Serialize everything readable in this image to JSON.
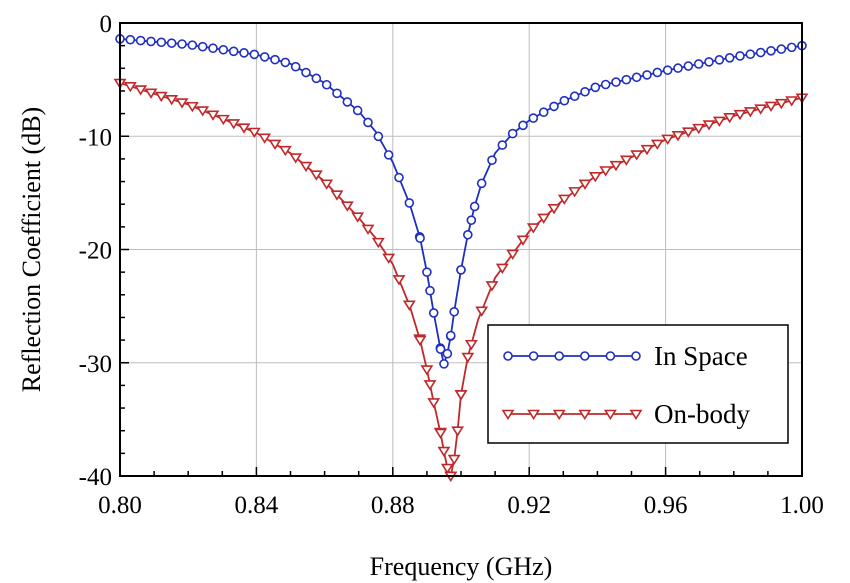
{
  "chart_data": {
    "type": "line",
    "xlabel": "Frequency (GHz)",
    "ylabel": "Reflection Coefficient (dB)",
    "xlim": [
      0.8,
      1.0
    ],
    "ylim": [
      -40,
      0
    ],
    "xticks": [
      0.8,
      0.84,
      0.88,
      0.92,
      0.96,
      1.0
    ],
    "xtick_labels": [
      "0.80",
      "0.84",
      "0.88",
      "0.92",
      "0.96",
      "1.00"
    ],
    "yticks": [
      0,
      -10,
      -20,
      -30,
      -40
    ],
    "ytick_labels": [
      "0",
      "-10",
      "-20",
      "-30",
      "-40"
    ],
    "grid": true,
    "legend_position": "bottom-right",
    "series": [
      {
        "name": "In Space",
        "color": "#1f2fbf",
        "marker": "circle",
        "x": [
          0.8,
          0.82,
          0.84,
          0.85,
          0.86,
          0.87,
          0.875,
          0.88,
          0.885,
          0.888,
          0.89,
          0.892,
          0.894,
          0.895,
          0.896,
          0.897,
          0.898,
          0.9,
          0.902,
          0.904,
          0.906,
          0.91,
          0.915,
          0.92,
          0.93,
          0.94,
          0.96,
          0.98,
          1.0
        ],
        "y": [
          -1.4,
          -1.9,
          -2.8,
          -3.6,
          -5.3,
          -7.8,
          -9.6,
          -12.3,
          -16.0,
          -19.0,
          -22.0,
          -25.6,
          -28.8,
          -30.1,
          -29.2,
          -27.6,
          -25.5,
          -21.8,
          -18.7,
          -16.2,
          -14.2,
          -11.5,
          -9.8,
          -8.6,
          -6.9,
          -5.6,
          -4.2,
          -3.0,
          -2.0
        ]
      },
      {
        "name": "On-body",
        "color": "#c0282a",
        "marker": "triangle-down",
        "x": [
          0.8,
          0.82,
          0.84,
          0.85,
          0.86,
          0.87,
          0.875,
          0.88,
          0.885,
          0.888,
          0.89,
          0.892,
          0.894,
          0.895,
          0.896,
          0.897,
          0.898,
          0.899,
          0.9,
          0.902,
          0.905,
          0.91,
          0.92,
          0.93,
          0.94,
          0.96,
          0.98,
          1.0
        ],
        "y": [
          -5.3,
          -7.2,
          -9.7,
          -11.5,
          -14.0,
          -17.2,
          -19.0,
          -21.3,
          -25.0,
          -28.0,
          -30.6,
          -33.5,
          -36.2,
          -37.8,
          -39.3,
          -40.0,
          -38.5,
          -36.0,
          -32.8,
          -29.5,
          -26.2,
          -22.5,
          -18.4,
          -15.6,
          -13.4,
          -10.3,
          -8.2,
          -6.6
        ]
      }
    ]
  }
}
